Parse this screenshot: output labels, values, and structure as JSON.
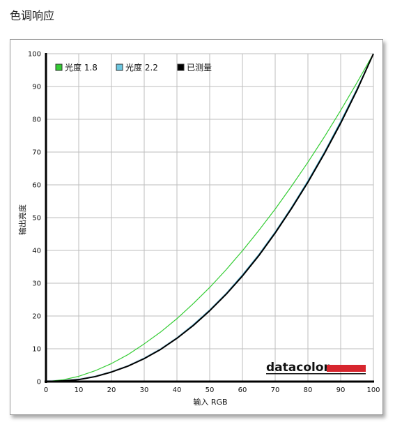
{
  "page": {
    "title": "色调响应"
  },
  "colors": {
    "gamma18": "#33cc33",
    "gamma22": "#3aa7c9",
    "measured": "#000000",
    "fill_between": "#cfe7f3",
    "grid": "#bdbdbd",
    "logo_bar": "#d7262e"
  },
  "logo": {
    "text": "datacolor"
  },
  "chart_data": {
    "type": "line",
    "xlabel": "输入 RGB",
    "ylabel": "输出亮度",
    "xlim": [
      0,
      100
    ],
    "ylim": [
      0,
      100
    ],
    "xticks": [
      0,
      10,
      20,
      30,
      40,
      50,
      60,
      70,
      80,
      90,
      100
    ],
    "yticks": [
      0,
      10,
      20,
      30,
      40,
      50,
      60,
      70,
      80,
      90,
      100
    ],
    "grid": true,
    "legend_position": "top-left",
    "legend": [
      {
        "label": "光度 1.8",
        "color": "#33cc33"
      },
      {
        "label": "光度 2.2",
        "color": "#6cc7e0"
      },
      {
        "label": "已测量",
        "color": "#000000"
      }
    ],
    "series": [
      {
        "name": "光度 1.8",
        "gamma": 1.8,
        "x": [
          0,
          5,
          10,
          15,
          20,
          25,
          30,
          35,
          40,
          45,
          50,
          55,
          60,
          65,
          70,
          75,
          80,
          85,
          90,
          95,
          100
        ],
        "y": [
          0,
          0.5,
          1.6,
          3.3,
          5.5,
          8.2,
          11.5,
          15.1,
          19.2,
          23.8,
          28.7,
          34.1,
          39.9,
          46.1,
          52.6,
          59.6,
          66.9,
          74.6,
          82.7,
          91.2,
          100
        ]
      },
      {
        "name": "光度 2.2",
        "gamma": 2.2,
        "x": [
          0,
          5,
          10,
          15,
          20,
          25,
          30,
          35,
          40,
          45,
          50,
          55,
          60,
          65,
          70,
          75,
          80,
          85,
          90,
          95,
          100
        ],
        "y": [
          0,
          0.1,
          0.6,
          1.5,
          2.9,
          4.7,
          7.1,
          9.9,
          13.3,
          17.3,
          21.8,
          26.8,
          32.5,
          38.7,
          45.6,
          53.1,
          61.2,
          69.9,
          79.3,
          89.3,
          100
        ]
      },
      {
        "name": "已测量",
        "x": [
          0,
          5,
          10,
          15,
          20,
          25,
          30,
          35,
          40,
          45,
          50,
          55,
          60,
          65,
          70,
          75,
          80,
          85,
          90,
          95,
          100
        ],
        "y": [
          0,
          0.2,
          0.6,
          1.5,
          2.9,
          4.7,
          7.0,
          9.8,
          13.2,
          17.1,
          21.6,
          26.6,
          32.2,
          38.4,
          45.3,
          52.8,
          60.8,
          69.5,
          78.8,
          88.9,
          100
        ]
      }
    ]
  }
}
